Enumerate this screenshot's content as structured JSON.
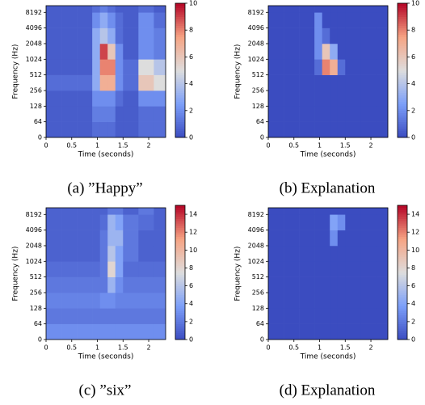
{
  "chart_data": [
    {
      "type": "heatmap",
      "caption": "(a) ”Happy”",
      "x_label": "Time (seconds)",
      "y_label": "Frequency (Hz)",
      "xlim": [
        0,
        2.33
      ],
      "xticks": [
        0,
        0.5,
        1,
        1.5,
        2
      ],
      "ylim": [
        0,
        11025
      ],
      "yticks": [
        0,
        64,
        128,
        256,
        512,
        1024,
        2048,
        4096,
        8192
      ],
      "yscale": "mel-like",
      "time_edges": [
        0,
        0.3,
        0.6,
        0.9,
        1.05,
        1.2,
        1.35,
        1.5,
        1.8,
        2.1,
        2.33
      ],
      "freq_edges": [
        0,
        64,
        128,
        256,
        512,
        1024,
        2048,
        4096,
        8192,
        11025
      ],
      "zlim": [
        0,
        10
      ],
      "colorbar_ticks": [
        0,
        2,
        4,
        6,
        8,
        10
      ],
      "colormap": "coolwarm",
      "z": [
        [
          0.5,
          0.5,
          0.5,
          1,
          1,
          1,
          0.5,
          0.5,
          1,
          1
        ],
        [
          0.5,
          0.5,
          0.5,
          1.5,
          1.5,
          1.5,
          0.5,
          0.5,
          1,
          1
        ],
        [
          0.5,
          0.5,
          0.5,
          2,
          2,
          2,
          1,
          0.5,
          2,
          2
        ],
        [
          1,
          1,
          1,
          3,
          7,
          7,
          2,
          1,
          6,
          5
        ],
        [
          0.5,
          0.5,
          0.5,
          3,
          8,
          8,
          2,
          1,
          5,
          4
        ],
        [
          0.5,
          0.5,
          0.5,
          3,
          9,
          6,
          2,
          0.5,
          2,
          1.5
        ],
        [
          0.5,
          0.5,
          0.5,
          3,
          4,
          3,
          1,
          0.5,
          2,
          1.5
        ],
        [
          0.5,
          0.5,
          0.5,
          2,
          3,
          2,
          1,
          0.5,
          2,
          1
        ],
        [
          0.5,
          0.5,
          0.5,
          1,
          1.5,
          1,
          0.5,
          0.5,
          1,
          0.5
        ]
      ]
    },
    {
      "type": "heatmap",
      "caption": "(b) Explanation",
      "x_label": "Time (seconds)",
      "y_label": "Frequency (Hz)",
      "xlim": [
        0,
        2.33
      ],
      "xticks": [
        0,
        0.5,
        1,
        1.5,
        2
      ],
      "ylim": [
        0,
        11025
      ],
      "yticks": [
        0,
        64,
        128,
        256,
        512,
        1024,
        2048,
        4096,
        8192
      ],
      "yscale": "mel-like",
      "time_edges": [
        0,
        0.3,
        0.6,
        0.9,
        1.05,
        1.2,
        1.35,
        1.5,
        1.8,
        2.1,
        2.33
      ],
      "freq_edges": [
        0,
        64,
        128,
        256,
        512,
        1024,
        2048,
        4096,
        8192,
        11025
      ],
      "zlim": [
        0,
        10
      ],
      "colorbar_ticks": [
        0,
        2,
        4,
        6,
        8,
        10
      ],
      "colormap": "coolwarm",
      "z": [
        [
          0,
          0,
          0,
          0,
          0,
          0,
          0,
          0,
          0,
          0
        ],
        [
          0,
          0,
          0,
          0,
          0,
          0,
          0,
          0,
          0,
          0
        ],
        [
          0,
          0,
          0,
          0,
          0,
          0,
          0,
          0,
          0,
          0
        ],
        [
          0,
          0,
          0,
          0,
          0,
          0,
          0,
          0,
          0,
          0
        ],
        [
          0,
          0,
          0,
          1,
          8,
          7,
          1,
          0,
          0,
          0
        ],
        [
          0,
          0,
          0,
          2,
          6,
          3,
          0,
          0,
          0,
          0
        ],
        [
          0,
          0,
          0,
          2,
          1,
          0,
          0,
          0,
          0,
          0
        ],
        [
          0,
          0,
          0,
          2,
          0,
          0,
          0,
          0,
          0,
          0
        ],
        [
          0,
          0,
          0,
          0,
          0,
          0,
          0,
          0,
          0,
          0
        ]
      ]
    },
    {
      "type": "heatmap",
      "caption": "(c) ”six”",
      "x_label": "Time (seconds)",
      "y_label": "Frequency (Hz)",
      "xlim": [
        0,
        2.33
      ],
      "xticks": [
        0,
        0.5,
        1,
        1.5,
        2
      ],
      "ylim": [
        0,
        11025
      ],
      "yticks": [
        0,
        64,
        128,
        256,
        512,
        1024,
        2048,
        4096,
        8192
      ],
      "yscale": "mel-like",
      "time_edges": [
        0,
        0.3,
        0.6,
        0.9,
        1.05,
        1.2,
        1.35,
        1.5,
        1.8,
        2.1,
        2.33
      ],
      "freq_edges": [
        0,
        64,
        128,
        256,
        512,
        1024,
        2048,
        4096,
        8192,
        11025
      ],
      "zlim": [
        0,
        15
      ],
      "colorbar_ticks": [
        0,
        2,
        4,
        6,
        8,
        10,
        12,
        14
      ],
      "colormap": "coolwarm",
      "z": [
        [
          3,
          3,
          3,
          3,
          3,
          3,
          3,
          3,
          3,
          3
        ],
        [
          2,
          2,
          2,
          2,
          2,
          2,
          2,
          2,
          2,
          2
        ],
        [
          2.5,
          2.5,
          2.5,
          2.5,
          3,
          3,
          2.5,
          2.5,
          2.5,
          2.5
        ],
        [
          2,
          2,
          2,
          2,
          2,
          5,
          3,
          2,
          2,
          2
        ],
        [
          1.5,
          1.5,
          1.5,
          1.5,
          2,
          8,
          4,
          1.5,
          1.5,
          1.5
        ],
        [
          1,
          1,
          1,
          1,
          2,
          6,
          4,
          2,
          1,
          1
        ],
        [
          1,
          1,
          1,
          1,
          2,
          5,
          5,
          2,
          1,
          1
        ],
        [
          1,
          1,
          1,
          1,
          1.5,
          5,
          4,
          2,
          1.5,
          1
        ],
        [
          1,
          1,
          1,
          1,
          1,
          2,
          2,
          1,
          2,
          1
        ]
      ]
    },
    {
      "type": "heatmap",
      "caption": "(d) Explanation",
      "x_label": "Time (seconds)",
      "y_label": "Frequency (Hz)",
      "xlim": [
        0,
        2.33
      ],
      "xticks": [
        0,
        0.5,
        1,
        1.5,
        2
      ],
      "ylim": [
        0,
        11025
      ],
      "yticks": [
        0,
        64,
        128,
        256,
        512,
        1024,
        2048,
        4096,
        8192
      ],
      "yscale": "mel-like",
      "time_edges": [
        0,
        0.3,
        0.6,
        0.9,
        1.05,
        1.2,
        1.35,
        1.5,
        1.8,
        2.1,
        2.33
      ],
      "freq_edges": [
        0,
        64,
        128,
        256,
        512,
        1024,
        2048,
        4096,
        8192,
        11025
      ],
      "zlim": [
        0,
        15
      ],
      "colorbar_ticks": [
        0,
        2,
        4,
        6,
        8,
        10,
        12,
        14
      ],
      "colormap": "coolwarm",
      "z": [
        [
          0,
          0,
          0,
          0,
          0,
          0,
          0,
          0,
          0,
          0
        ],
        [
          0,
          0,
          0,
          0,
          0,
          0,
          0,
          0,
          0,
          0
        ],
        [
          0,
          0,
          0,
          0,
          0,
          0,
          0,
          0,
          0,
          0
        ],
        [
          0,
          0,
          0,
          0,
          0,
          0,
          0,
          0,
          0,
          0
        ],
        [
          0,
          0,
          0,
          0,
          0,
          0,
          0,
          0,
          0,
          0
        ],
        [
          0,
          0,
          0,
          0,
          0,
          0,
          0,
          0,
          0,
          0
        ],
        [
          0,
          0,
          0,
          0,
          0,
          3,
          0,
          0,
          0,
          0
        ],
        [
          0,
          0,
          0,
          0,
          0,
          4,
          3,
          0,
          0,
          0
        ],
        [
          0,
          0,
          0,
          0,
          0,
          0,
          0,
          0,
          0,
          0
        ]
      ]
    }
  ]
}
